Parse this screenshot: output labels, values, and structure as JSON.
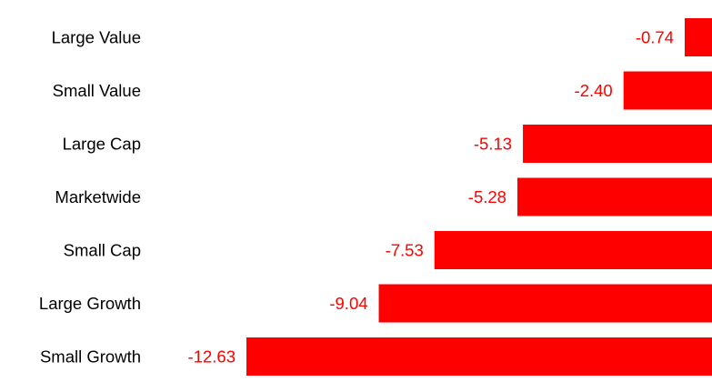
{
  "chart_data": {
    "type": "bar",
    "orientation": "horizontal",
    "title": "",
    "xlabel": "",
    "ylabel": "",
    "categories": [
      "Large Value",
      "Small Value",
      "Large Cap",
      "Marketwide",
      "Small Cap",
      "Large Growth",
      "Small Growth"
    ],
    "values": [
      -0.74,
      -2.4,
      -5.13,
      -5.28,
      -7.53,
      -9.04,
      -12.63
    ],
    "value_labels": [
      "-0.74",
      "-2.40",
      "-5.13",
      "-5.28",
      "-7.53",
      "-9.04",
      "-12.63"
    ],
    "xlim": [
      -12.63,
      0
    ],
    "grid": false,
    "legend": "none",
    "colors": {
      "bar": "#ff0000",
      "value_label": "#ff0000",
      "category_label": "#000000"
    }
  }
}
